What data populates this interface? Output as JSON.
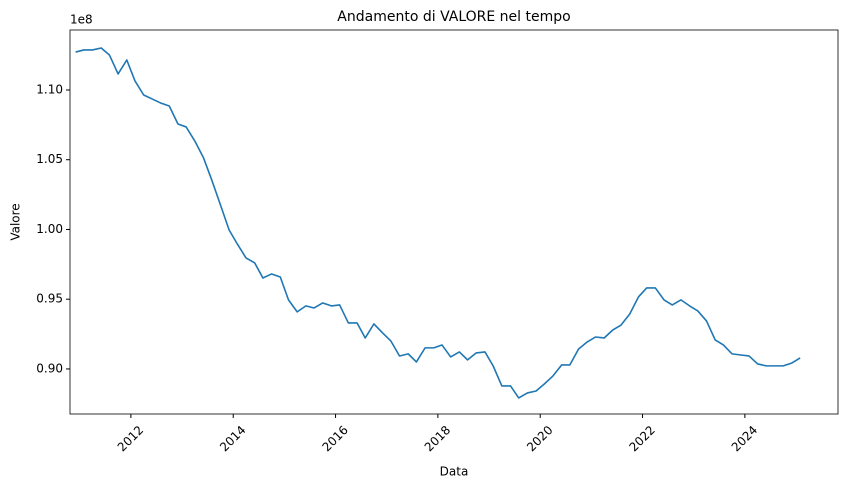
{
  "chart_data": {
    "type": "line",
    "title": "Andamento di VALORE nel tempo",
    "xlabel": "Data",
    "ylabel": "Valore",
    "y_offset_label": "1e8",
    "color": "#1f77b4",
    "x": [
      2010.92,
      2011.08,
      2011.25,
      2011.42,
      2011.58,
      2011.75,
      2011.92,
      2012.08,
      2012.25,
      2012.42,
      2012.58,
      2012.75,
      2012.92,
      2013.08,
      2013.25,
      2013.42,
      2013.58,
      2013.75,
      2013.92,
      2014.08,
      2014.25,
      2014.42,
      2014.58,
      2014.75,
      2014.92,
      2015.08,
      2015.25,
      2015.42,
      2015.58,
      2015.75,
      2015.92,
      2016.08,
      2016.25,
      2016.42,
      2016.58,
      2016.75,
      2016.92,
      2017.08,
      2017.25,
      2017.42,
      2017.58,
      2017.75,
      2017.92,
      2018.08,
      2018.25,
      2018.42,
      2018.58,
      2018.75,
      2018.92,
      2019.08,
      2019.25,
      2019.42,
      2019.58,
      2019.75,
      2019.92,
      2020.08,
      2020.25,
      2020.42,
      2020.58,
      2020.75,
      2020.92,
      2021.08,
      2021.25,
      2021.42,
      2021.58,
      2021.75,
      2021.92,
      2022.08,
      2022.25,
      2022.42,
      2022.58,
      2022.75,
      2022.92,
      2023.08,
      2023.25,
      2023.42,
      2023.58,
      2023.75,
      2023.92,
      2024.08,
      2024.25,
      2024.42,
      2024.58,
      2024.75,
      2024.92,
      2025.08
    ],
    "values": [
      1.1272,
      1.1287,
      1.1287,
      1.1301,
      1.1251,
      1.1115,
      1.1215,
      1.1065,
      1.0964,
      1.0935,
      1.0907,
      1.0885,
      1.0756,
      1.0735,
      1.0634,
      1.0513,
      1.0355,
      1.0176,
      0.9996,
      0.9896,
      0.9796,
      0.976,
      0.9652,
      0.9681,
      0.9659,
      0.9495,
      0.9409,
      0.9452,
      0.9437,
      0.9473,
      0.9452,
      0.9459,
      0.933,
      0.933,
      0.9222,
      0.9323,
      0.9258,
      0.9201,
      0.9093,
      0.9108,
      0.905,
      0.9151,
      0.9151,
      0.9172,
      0.9086,
      0.9122,
      0.9065,
      0.9115,
      0.9122,
      0.9022,
      0.8878,
      0.8878,
      0.8792,
      0.8828,
      0.8842,
      0.8892,
      0.895,
      0.9029,
      0.9029,
      0.9143,
      0.9194,
      0.9229,
      0.9222,
      0.928,
      0.9315,
      0.9394,
      0.9516,
      0.9581,
      0.9581,
      0.9495,
      0.9459,
      0.9495,
      0.9452,
      0.9416,
      0.9344,
      0.9208,
      0.9172,
      0.9108,
      0.91,
      0.9093,
      0.9036,
      0.9022,
      0.9022,
      0.9022,
      0.9043,
      0.9079
    ],
    "xlim": [
      2010.81,
      2025.82
    ],
    "xticks": [
      2012,
      2014,
      2016,
      2018,
      2020,
      2022,
      2024
    ],
    "ylim": [
      0.8677,
      1.143
    ],
    "yticks": [
      {
        "value": 0.9,
        "label": "0.90"
      },
      0.95,
      {
        "value": 1,
        "label": "1.00"
      },
      1.05,
      {
        "value": 1.1,
        "label": "1.10"
      }
    ]
  }
}
